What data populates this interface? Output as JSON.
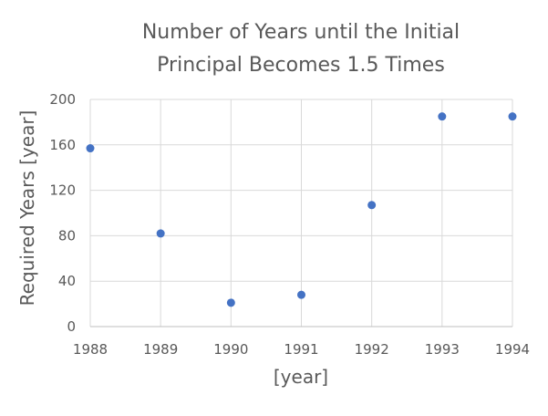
{
  "chart_data": {
    "type": "scatter",
    "title_lines": [
      "Number of Years until the Initial",
      "Principal Becomes 1.5 Times"
    ],
    "xlabel": "[year]",
    "ylabel": "Required Years [year]",
    "x_ticks": [
      "1988",
      "1989",
      "1990",
      "1991",
      "1992",
      "1993",
      "1994"
    ],
    "y_ticks": [
      "0",
      "40",
      "80",
      "120",
      "160",
      "200"
    ],
    "xlim": [
      1988,
      1994
    ],
    "ylim": [
      0,
      200
    ],
    "grid": true,
    "legend": "none",
    "marker_color": "#4472C4",
    "points": [
      {
        "x": 1988,
        "y": 157
      },
      {
        "x": 1989,
        "y": 82
      },
      {
        "x": 1990,
        "y": 21
      },
      {
        "x": 1991,
        "y": 28
      },
      {
        "x": 1992,
        "y": 107
      },
      {
        "x": 1993,
        "y": 185
      },
      {
        "x": 1994,
        "y": 185
      }
    ]
  }
}
